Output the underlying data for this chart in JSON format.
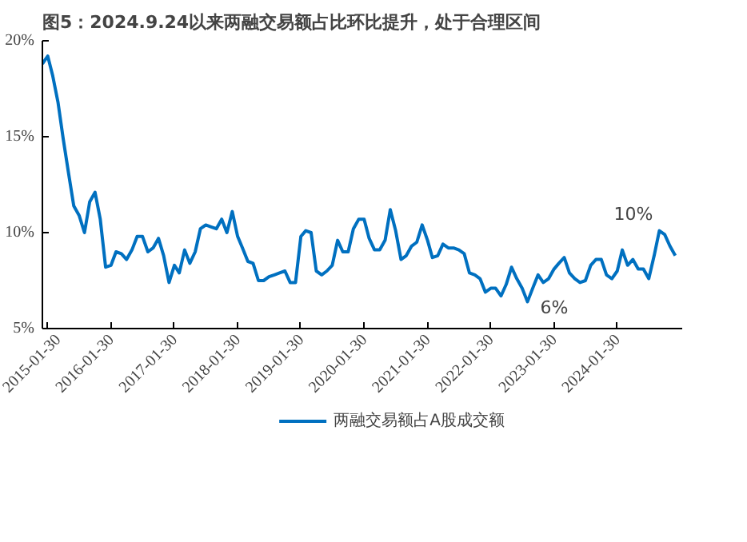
{
  "chart_data": {
    "type": "line",
    "title": "图5：2024.9.24以来两融交易额占比环比提升，处于合理区间",
    "xlim": [
      "2015-01",
      "2025-02-10"
    ],
    "xticks": [
      "2015-01-30",
      "2016-01-30",
      "2017-01-30",
      "2018-01-30",
      "2019-01-30",
      "2020-01-30",
      "2021-01-30",
      "2022-01-30",
      "2023-01-30",
      "2024-01-30"
    ],
    "ylim": [
      5,
      20
    ],
    "yticks": [
      {
        "value": 5,
        "label": "5%"
      },
      {
        "value": 10,
        "label": "10%"
      },
      {
        "value": 15,
        "label": "15%"
      },
      {
        "value": 20,
        "label": "20%"
      }
    ],
    "grid": false,
    "legend": "bottom",
    "x": [
      "2015-01",
      "2015-02",
      "2015-03",
      "2015-04",
      "2015-05",
      "2015-06",
      "2015-07",
      "2015-08",
      "2015-09",
      "2015-10",
      "2015-11",
      "2015-12",
      "2016-01",
      "2016-02",
      "2016-03",
      "2016-04",
      "2016-05",
      "2016-06",
      "2016-07",
      "2016-08",
      "2016-09",
      "2016-10",
      "2016-11",
      "2016-12",
      "2017-01",
      "2017-02",
      "2017-03",
      "2017-04",
      "2017-05",
      "2017-06",
      "2017-07",
      "2017-08",
      "2017-09",
      "2017-10",
      "2017-11",
      "2017-12",
      "2018-01",
      "2018-02",
      "2018-03",
      "2018-04",
      "2018-05",
      "2018-06",
      "2018-07",
      "2018-08",
      "2018-09",
      "2018-10",
      "2018-11",
      "2018-12",
      "2019-01",
      "2019-02",
      "2019-03",
      "2019-04",
      "2019-05",
      "2019-06",
      "2019-07",
      "2019-08",
      "2019-09",
      "2019-10",
      "2019-11",
      "2019-12",
      "2020-01",
      "2020-02",
      "2020-03",
      "2020-04",
      "2020-05",
      "2020-06",
      "2020-07",
      "2020-08",
      "2020-09",
      "2020-10",
      "2020-11",
      "2020-12",
      "2021-01",
      "2021-02",
      "2021-03",
      "2021-04",
      "2021-05",
      "2021-06",
      "2021-07",
      "2021-08",
      "2021-09",
      "2021-10",
      "2021-11",
      "2021-12",
      "2022-01",
      "2022-02",
      "2022-03",
      "2022-04",
      "2022-05",
      "2022-06",
      "2022-07",
      "2022-08",
      "2022-09",
      "2022-10",
      "2022-11",
      "2022-12",
      "2023-01",
      "2023-02",
      "2023-03",
      "2023-04",
      "2023-05",
      "2023-06",
      "2023-07",
      "2023-08",
      "2023-09",
      "2023-10",
      "2023-11",
      "2023-12",
      "2024-01",
      "2024-02",
      "2024-03",
      "2024-04",
      "2024-05",
      "2024-06",
      "2024-07",
      "2024-08",
      "2024-09",
      "2024-10",
      "2024-11",
      "2024-12",
      "2025-01"
    ],
    "series": [
      {
        "name": "两融交易额占A股成交额",
        "color": "#0070c0",
        "values": [
          18.8,
          19.2,
          18.2,
          16.8,
          14.9,
          13.1,
          11.4,
          10.9,
          10.0,
          11.6,
          12.1,
          10.7,
          8.2,
          8.3,
          9.0,
          8.9,
          8.6,
          9.1,
          9.8,
          9.8,
          9.0,
          9.2,
          9.7,
          8.8,
          7.4,
          8.3,
          7.9,
          9.1,
          8.4,
          9.0,
          10.2,
          10.4,
          10.3,
          10.2,
          10.7,
          10.0,
          11.1,
          9.8,
          9.2,
          8.5,
          8.4,
          7.5,
          7.5,
          7.7,
          7.8,
          7.9,
          8.0,
          7.4,
          7.4,
          9.8,
          10.1,
          10.0,
          8.0,
          7.8,
          8.0,
          8.3,
          9.6,
          9.0,
          9.0,
          10.2,
          10.7,
          10.7,
          9.7,
          9.1,
          9.1,
          9.6,
          11.2,
          10.1,
          8.6,
          8.8,
          9.3,
          9.5,
          10.4,
          9.6,
          8.7,
          8.8,
          9.4,
          9.2,
          9.2,
          9.1,
          8.9,
          7.9,
          7.8,
          7.6,
          6.9,
          7.1,
          7.1,
          6.7,
          7.3,
          8.2,
          7.6,
          7.1,
          6.4,
          7.1,
          7.8,
          7.4,
          7.6,
          8.1,
          8.4,
          8.7,
          7.9,
          7.6,
          7.4,
          7.5,
          8.3,
          8.6,
          8.6,
          7.8,
          7.6,
          8.0,
          9.1,
          8.3,
          8.6,
          8.1,
          8.1,
          7.6,
          8.8,
          10.1,
          9.9,
          9.3,
          8.8
        ]
      }
    ],
    "annotations": [
      {
        "text": "6%",
        "x": "2022-09",
        "y": 6.4
      },
      {
        "text": "10%",
        "x": "2024-10",
        "y": 10.1
      }
    ]
  }
}
